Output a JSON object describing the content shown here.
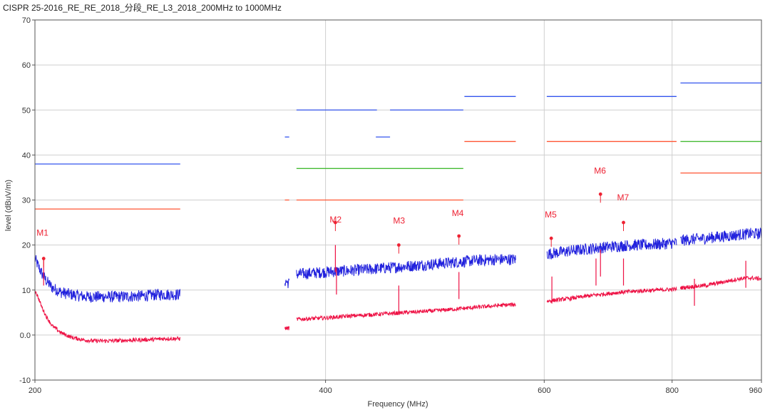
{
  "title": "CISPR 25-2016_RE_RE_2018_分段_RE_L3_2018_200MHz to 1000MHz",
  "colors": {
    "peak": "#2222dd",
    "average": "#ee1144",
    "limit_peak": "#3355ee",
    "limit_average": "#ff5533",
    "limit_quasipeak": "#44bb33",
    "marker": "#ee2233",
    "grid": "#cfcfcf"
  },
  "chart_data": {
    "type": "line",
    "title": "CISPR 25-2016_RE_RE_2018_分段_RE_L3_2018_200MHz to 1000MHz",
    "xlabel": "Frequency (MHz)",
    "ylabel": "level (dBuV/m)",
    "xlim": [
      200,
      960
    ],
    "ylim": [
      -10,
      70
    ],
    "x_scale": "segmented",
    "x_ticks": [
      {
        "value": 200,
        "label": "200"
      },
      {
        "value": 400,
        "label": "400"
      },
      {
        "value": 600,
        "label": "600"
      },
      {
        "value": 800,
        "label": "800"
      },
      {
        "value": 960,
        "label": "960"
      }
    ],
    "y_ticks": [
      {
        "value": -10,
        "label": "-10"
      },
      {
        "value": 0,
        "label": "0.0"
      },
      {
        "value": 10,
        "label": "10"
      },
      {
        "value": 20,
        "label": "20"
      },
      {
        "value": 30,
        "label": "30"
      },
      {
        "value": 40,
        "label": "40"
      },
      {
        "value": 50,
        "label": "50"
      },
      {
        "value": 60,
        "label": "60"
      },
      {
        "value": 70,
        "label": "70"
      }
    ],
    "grid": true,
    "x_axis_map": [
      [
        200,
        0.0
      ],
      [
        400,
        0.4
      ],
      [
        600,
        0.701
      ],
      [
        800,
        0.877
      ],
      [
        960,
        1.0
      ]
    ],
    "limit_lines": [
      {
        "kind": "peak",
        "x0": 200,
        "x1": 300,
        "y": 38
      },
      {
        "kind": "average",
        "x0": 200,
        "x1": 300,
        "y": 28
      },
      {
        "kind": "peak",
        "x0": 372,
        "x1": 375,
        "y": 44
      },
      {
        "kind": "average",
        "x0": 372,
        "x1": 375,
        "y": 30
      },
      {
        "kind": "peak",
        "x0": 380,
        "x1": 447,
        "y": 50
      },
      {
        "kind": "peak",
        "x0": 459,
        "x1": 526,
        "y": 50
      },
      {
        "kind": "peak",
        "x0": 446,
        "x1": 459,
        "y": 44
      },
      {
        "kind": "quasi-peak",
        "x0": 380,
        "x1": 526,
        "y": 37
      },
      {
        "kind": "average",
        "x0": 380,
        "x1": 526,
        "y": 30
      },
      {
        "kind": "peak",
        "x0": 527,
        "x1": 574,
        "y": 53
      },
      {
        "kind": "average",
        "x0": 527,
        "x1": 574,
        "y": 43
      },
      {
        "kind": "peak",
        "x0": 604,
        "x1": 808,
        "y": 53
      },
      {
        "kind": "average",
        "x0": 604,
        "x1": 808,
        "y": 43
      },
      {
        "kind": "peak",
        "x0": 815,
        "x1": 960,
        "y": 56
      },
      {
        "kind": "quasi-peak",
        "x0": 815,
        "x1": 960,
        "y": 43
      },
      {
        "kind": "average",
        "x0": 815,
        "x1": 960,
        "y": 36
      }
    ],
    "series": [
      {
        "kind": "peak",
        "segments": [
          {
            "x": [
              200,
              202,
              205,
              208,
              212,
              218,
              225,
              235,
              245,
              255,
              265,
              275,
              285,
              292,
              300
            ],
            "y": [
              17,
              15.5,
              13.5,
              12,
              10.5,
              9.5,
              9,
              8.5,
              8.5,
              8.5,
              8.6,
              8.7,
              9,
              9,
              9
            ]
          },
          {
            "x": [
              372,
              375
            ],
            "y": [
              12,
              11.5
            ]
          },
          {
            "x": [
              380,
              400,
              420,
              440,
              460,
              480,
              500,
              520,
              540,
              560,
              574
            ],
            "y": [
              13.5,
              14,
              14.3,
              14.6,
              15,
              15.4,
              15.8,
              16.2,
              16.6,
              16.8,
              16.8
            ]
          },
          {
            "x": [
              604,
              620,
              640,
              660,
              680,
              700,
              720,
              740,
              760,
              780,
              808
            ],
            "y": [
              18,
              18.3,
              18.7,
              19,
              19.3,
              19.6,
              19.8,
              20,
              20,
              20.2,
              20.5
            ]
          },
          {
            "x": [
              815,
              840,
              860,
              880,
              900,
              920,
              940,
              960
            ],
            "y": [
              21,
              21.3,
              21.5,
              21.8,
              22,
              22.3,
              22.5,
              22.5
            ]
          }
        ]
      },
      {
        "kind": "average",
        "segments": [
          {
            "x": [
              200,
              202,
              205,
              208,
              212,
              218,
              225,
              232,
              240,
              250,
              260,
              270,
              280,
              290,
              300
            ],
            "y": [
              10,
              8.5,
              6,
              4,
              2,
              0.5,
              -0.5,
              -1,
              -1.3,
              -1.3,
              -1.2,
              -1.1,
              -1,
              -0.8,
              -0.8
            ]
          },
          {
            "x": [
              372,
              375
            ],
            "y": [
              1.5,
              1.5
            ]
          },
          {
            "x": [
              380,
              400,
              420,
              440,
              460,
              480,
              500,
              520,
              540,
              560,
              574
            ],
            "y": [
              3.5,
              3.8,
              4.2,
              4.5,
              4.8,
              5.1,
              5.4,
              5.8,
              6.2,
              6.6,
              6.8
            ]
          },
          {
            "x": [
              604,
              620,
              640,
              660,
              680,
              700,
              720,
              740,
              760,
              780,
              808
            ],
            "y": [
              7.5,
              7.8,
              8.1,
              8.5,
              8.9,
              9.2,
              9.5,
              9.7,
              9.9,
              10,
              10.2
            ]
          },
          {
            "x": [
              815,
              840,
              860,
              880,
              900,
              920,
              940,
              960
            ],
            "y": [
              10.5,
              10.8,
              11,
              11.5,
              12,
              12.5,
              12.7,
              12.5
            ]
          }
        ]
      }
    ],
    "spikes": [
      {
        "kind": "average",
        "x": 206,
        "y": 17
      },
      {
        "kind": "average",
        "x": 409,
        "y": 20
      },
      {
        "kind": "average",
        "x": 410,
        "y": 15
      },
      {
        "kind": "average",
        "x": 467,
        "y": 11
      },
      {
        "kind": "average",
        "x": 522,
        "y": 14
      },
      {
        "kind": "average",
        "x": 612,
        "y": 13
      },
      {
        "kind": "average",
        "x": 681,
        "y": 17
      },
      {
        "kind": "average",
        "x": 688,
        "y": 19
      },
      {
        "kind": "average",
        "x": 724,
        "y": 17
      },
      {
        "kind": "average",
        "x": 840,
        "y": 12.5
      },
      {
        "kind": "average",
        "x": 932,
        "y": 16.5
      }
    ],
    "markers": [
      {
        "label": "M1",
        "x": 206,
        "y": 17,
        "label_dx": -10,
        "label_dy": -32
      },
      {
        "label": "M2",
        "x": 409,
        "y": 25,
        "label_dx": -8,
        "label_dy": 0
      },
      {
        "label": "M3",
        "x": 467,
        "y": 20,
        "label_dx": -8,
        "label_dy": -30
      },
      {
        "label": "M4",
        "x": 522,
        "y": 22,
        "label_dx": -10,
        "label_dy": -28
      },
      {
        "label": "M5",
        "x": 611,
        "y": 21.5,
        "label_dx": -9,
        "label_dy": -29
      },
      {
        "label": "M6",
        "x": 688,
        "y": 31.3,
        "label_dx": -9,
        "label_dy": -29
      },
      {
        "label": "M7",
        "x": 724,
        "y": 25,
        "label_dx": -9,
        "label_dy": -31
      }
    ]
  }
}
